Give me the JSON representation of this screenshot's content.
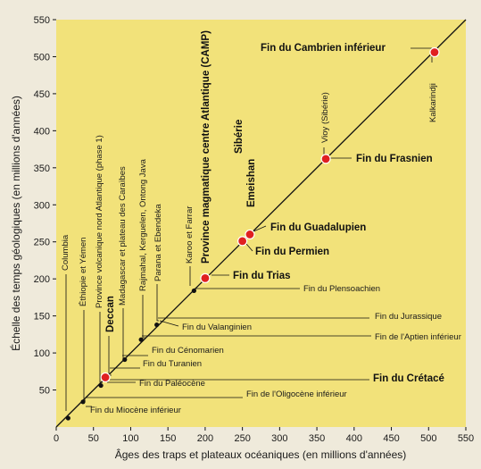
{
  "chart_data": {
    "type": "scatter",
    "xlabel": "Âges des traps et plateaux océaniques (en millions d'années)",
    "ylabel": "Échelle des temps géologiques (en millions d'années)",
    "xlim": [
      0,
      550
    ],
    "ylim": [
      0,
      550
    ],
    "xticks": [
      "0",
      "50",
      "100",
      "150",
      "200",
      "250",
      "300",
      "350",
      "400",
      "450",
      "500",
      "550"
    ],
    "yticks": [
      "50",
      "100",
      "150",
      "200",
      "250",
      "300",
      "350",
      "400",
      "450",
      "500",
      "550"
    ],
    "grid": false,
    "identity_line": true,
    "colors": {
      "background": "#f2e27a",
      "major_point": "#e02020",
      "minor_point": "#111111",
      "line": "#111111"
    },
    "points": [
      {
        "x": 16,
        "y": 12,
        "major": false,
        "trap": "Columbia",
        "event": "Fin du Miocène inférieur"
      },
      {
        "x": 36,
        "y": 34,
        "major": false,
        "trap": "Éthiopie et Yémen",
        "event": "Fin de l'Oligocène inférieur"
      },
      {
        "x": 60,
        "y": 56,
        "major": false,
        "trap": "",
        "event": "Fin du Paléocène"
      },
      {
        "x": 66,
        "y": 67,
        "major": true,
        "trap": "Deccan",
        "event": "Fin du Crétacé"
      },
      {
        "x": 92,
        "y": 91,
        "major": false,
        "trap": "Madagascar et plateau des Caraïbes",
        "event": "Fin du Turanien"
      },
      {
        "x": 114,
        "y": 118,
        "major": false,
        "trap": "Rajmahal, Kerguelen, Ontong Java",
        "event": "Fin du Cénomarien"
      },
      {
        "x": 135,
        "y": 138,
        "major": false,
        "trap": "Parana et Ebendeka",
        "event": "Fin du Valanginien"
      },
      {
        "x": 185,
        "y": 184,
        "major": false,
        "trap": "Karoo et Farrar",
        "event": "Fin du Plensoachien"
      },
      {
        "x": 200,
        "y": 201,
        "major": true,
        "trap": "Province magmatique centre Atlantique (CAMP)",
        "event": "Fin du Trias"
      },
      {
        "x": 250,
        "y": 251,
        "major": true,
        "trap": "Sibérie",
        "event": "Fin du Permien"
      },
      {
        "x": 260,
        "y": 260,
        "major": true,
        "trap": "Emeishan",
        "event": "Fin du Guadalupien"
      },
      {
        "x": 362,
        "y": 362,
        "major": true,
        "trap": "Vioy (Sibérie)",
        "event": "Fin du Frasnien"
      },
      {
        "x": 508,
        "y": 506,
        "major": true,
        "trap": "Kalkarindji",
        "event": "Fin du Cambrien inférieur"
      }
    ],
    "annotations": [
      "Province volcanique nord Atlantique (phase 1)",
      "Fin du Jurassique",
      "Fin de l'Aptien inférieur"
    ]
  }
}
